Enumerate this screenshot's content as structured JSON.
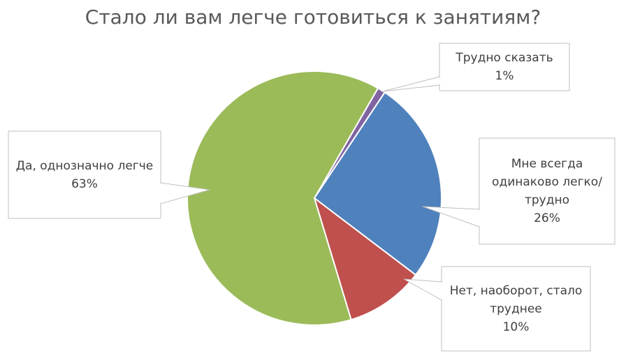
{
  "chart_data": {
    "type": "pie",
    "title": "Стало ли вам легче готовиться к занятиям?",
    "categories": [
      "Трудно сказать",
      "Мне всегда одинаково легко/трудно",
      "Нет, наоборот, стало труднее",
      "Да, однозначно легче"
    ],
    "values": [
      1,
      26,
      10,
      63
    ],
    "value_labels": [
      "1%",
      "26%",
      "10%",
      "63%"
    ],
    "colors": [
      "#8064a2",
      "#4f81bd",
      "#c0504d",
      "#9bbb59"
    ]
  }
}
